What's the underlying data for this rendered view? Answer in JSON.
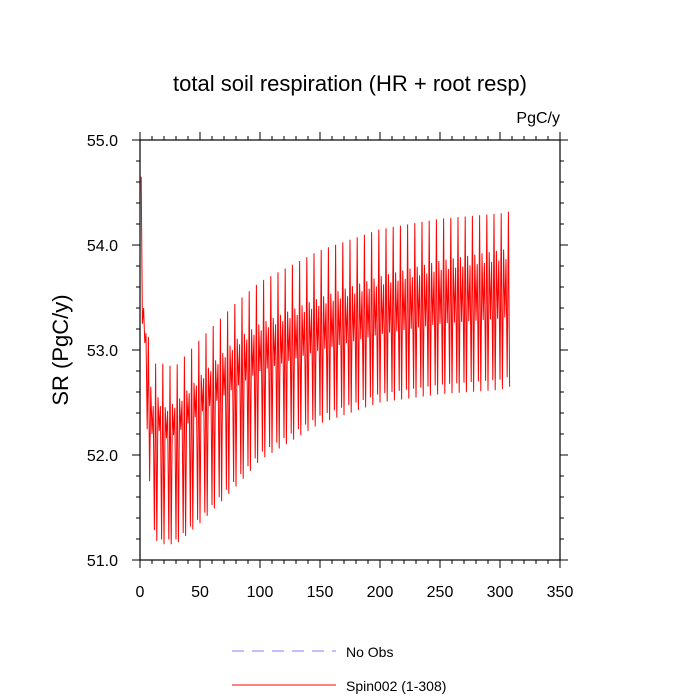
{
  "chart_data": {
    "type": "line",
    "title": "total soil respiration (HR + root resp)",
    "units_label": "PgC/y",
    "ylabel": "SR  (PgC/y)",
    "xlabel": "",
    "xlim": [
      0,
      350
    ],
    "ylim": [
      51.0,
      55.0
    ],
    "x_ticks": [
      0,
      50,
      100,
      150,
      200,
      250,
      300,
      350
    ],
    "x_tick_labels": [
      "0",
      "50",
      "100",
      "150",
      "200",
      "250",
      "300",
      "350"
    ],
    "y_ticks": [
      51.0,
      52.0,
      53.0,
      54.0,
      55.0
    ],
    "y_tick_labels": [
      "51.0",
      "52.0",
      "53.0",
      "54.0",
      "55.0"
    ],
    "x_minor_step": 10,
    "y_minor_step": 0.2,
    "grid": false,
    "legend_position": "bottom-center",
    "series": [
      {
        "name": "No Obs",
        "style": "dashed",
        "color": "#8080ff",
        "x": [],
        "values": []
      },
      {
        "name": "Spin002 (1-308)",
        "style": "solid",
        "color": "#ff0000",
        "x_start": 1,
        "x_end": 308,
        "cycle_length": 6,
        "envelope_keypoints_x": [
          1,
          3,
          6,
          10,
          15,
          20,
          30,
          50,
          80,
          100,
          150,
          200,
          250,
          300,
          308
        ],
        "envelope_upper": [
          54.65,
          53.5,
          53.25,
          52.75,
          52.95,
          52.85,
          52.85,
          53.1,
          53.45,
          53.65,
          53.95,
          54.15,
          54.25,
          54.3,
          54.32
        ],
        "envelope_upper_mid": [
          54.3,
          53.4,
          53.1,
          52.5,
          52.55,
          52.45,
          52.5,
          52.75,
          53.1,
          53.25,
          53.5,
          53.7,
          53.85,
          53.95,
          53.97
        ],
        "envelope_lower_mid": [
          54.0,
          53.2,
          52.8,
          52.2,
          52.25,
          52.15,
          52.2,
          52.4,
          52.65,
          52.8,
          53.0,
          53.15,
          53.25,
          53.3,
          53.32
        ],
        "envelope_lower": [
          53.8,
          52.7,
          52.2,
          51.3,
          51.15,
          51.15,
          51.15,
          51.35,
          51.7,
          51.95,
          52.3,
          52.5,
          52.58,
          52.62,
          52.65
        ]
      }
    ]
  }
}
